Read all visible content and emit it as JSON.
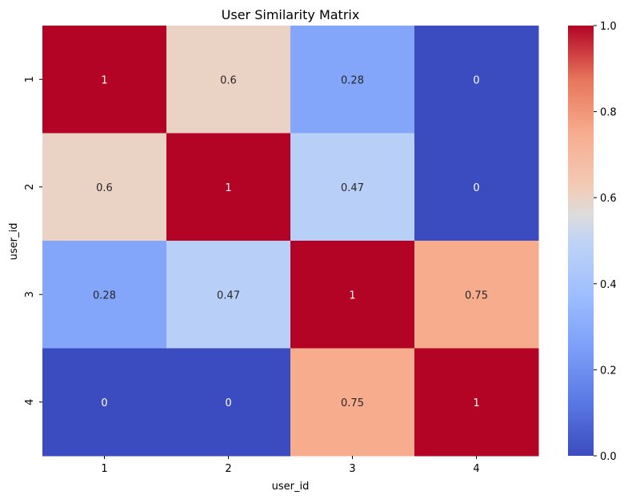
{
  "chart_data": {
    "type": "heatmap",
    "title": "User Similarity Matrix",
    "xlabel": "user_id",
    "ylabel": "user_id",
    "x_categories": [
      "1",
      "2",
      "3",
      "4"
    ],
    "y_categories": [
      "1",
      "2",
      "3",
      "4"
    ],
    "values": [
      [
        1,
        0.6,
        0.28,
        0
      ],
      [
        0.6,
        1,
        0.47,
        0
      ],
      [
        0.28,
        0.47,
        1,
        0.75
      ],
      [
        0,
        0,
        0.75,
        1
      ]
    ],
    "annotations": [
      [
        "1",
        "0.6",
        "0.28",
        "0"
      ],
      [
        "0.6",
        "1",
        "0.47",
        "0"
      ],
      [
        "0.28",
        "0.47",
        "1",
        "0.75"
      ],
      [
        "0",
        "0",
        "0.75",
        "1"
      ]
    ],
    "colormap": "coolwarm",
    "vmin": 0,
    "vmax": 1,
    "colorbar_ticks": [
      "0.0",
      "0.2",
      "0.4",
      "0.6",
      "0.8",
      "1.0"
    ]
  }
}
